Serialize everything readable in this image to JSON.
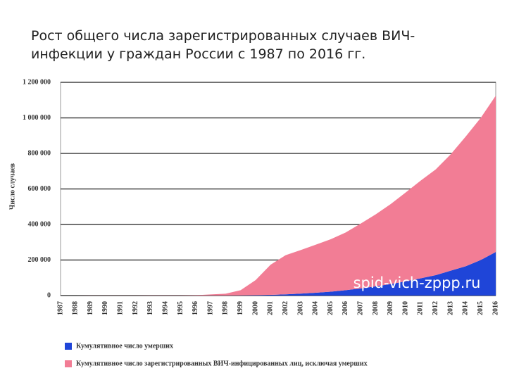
{
  "chart_data": {
    "type": "stacked-area",
    "title": "Рост общего числа зарегистрированных случаев ВИЧ-инфекции у граждан России с 1987 по 2016 гг.",
    "y_label": "Число случаев",
    "watermark": "spid-vich-zppp.ru",
    "categories": [
      "1987",
      "1988",
      "1989",
      "1990",
      "1991",
      "1992",
      "1993",
      "1994",
      "1995",
      "1996",
      "1997",
      "1998",
      "1999",
      "2000",
      "2001",
      "2002",
      "2003",
      "2004",
      "2005",
      "2006",
      "2007",
      "2008",
      "2009",
      "2010",
      "2011",
      "2012",
      "2013",
      "2014",
      "2015",
      "2016"
    ],
    "series": [
      {
        "name": "Кумулятивное число умерших",
        "color": "#1f45d8",
        "values": [
          0,
          0,
          0,
          0,
          0,
          0,
          0,
          0,
          0,
          100,
          300,
          600,
          1000,
          2000,
          4000,
          7000,
          11000,
          16000,
          22000,
          30000,
          40000,
          52000,
          65000,
          80000,
          97000,
          115000,
          140000,
          165000,
          200000,
          245000
        ]
      },
      {
        "name": "Кумулятивное число зарегистрированных ВИЧ-инфицированных лиц, исключая умерших",
        "color": "#f27d95",
        "values": [
          100,
          200,
          400,
          500,
          600,
          700,
          800,
          900,
          1000,
          2000,
          6000,
          10000,
          29000,
          85000,
          170000,
          220000,
          245000,
          270000,
          295000,
          325000,
          365000,
          405000,
          450000,
          500000,
          550000,
          595000,
          655000,
          730000,
          800000,
          880000
        ]
      }
    ],
    "ylim": [
      0,
      1200000
    ],
    "yticks": [
      0,
      {
        "value": 200000,
        "label": "200 000"
      },
      {
        "value": 400000,
        "label": "400 000"
      },
      {
        "value": 600000,
        "label": "600 000"
      },
      {
        "value": 800000,
        "label": "800 000"
      },
      {
        "value": 1000000,
        "label": "1 000 000"
      },
      {
        "value": 1200000,
        "label": "1 200 000"
      }
    ],
    "grid": true
  }
}
